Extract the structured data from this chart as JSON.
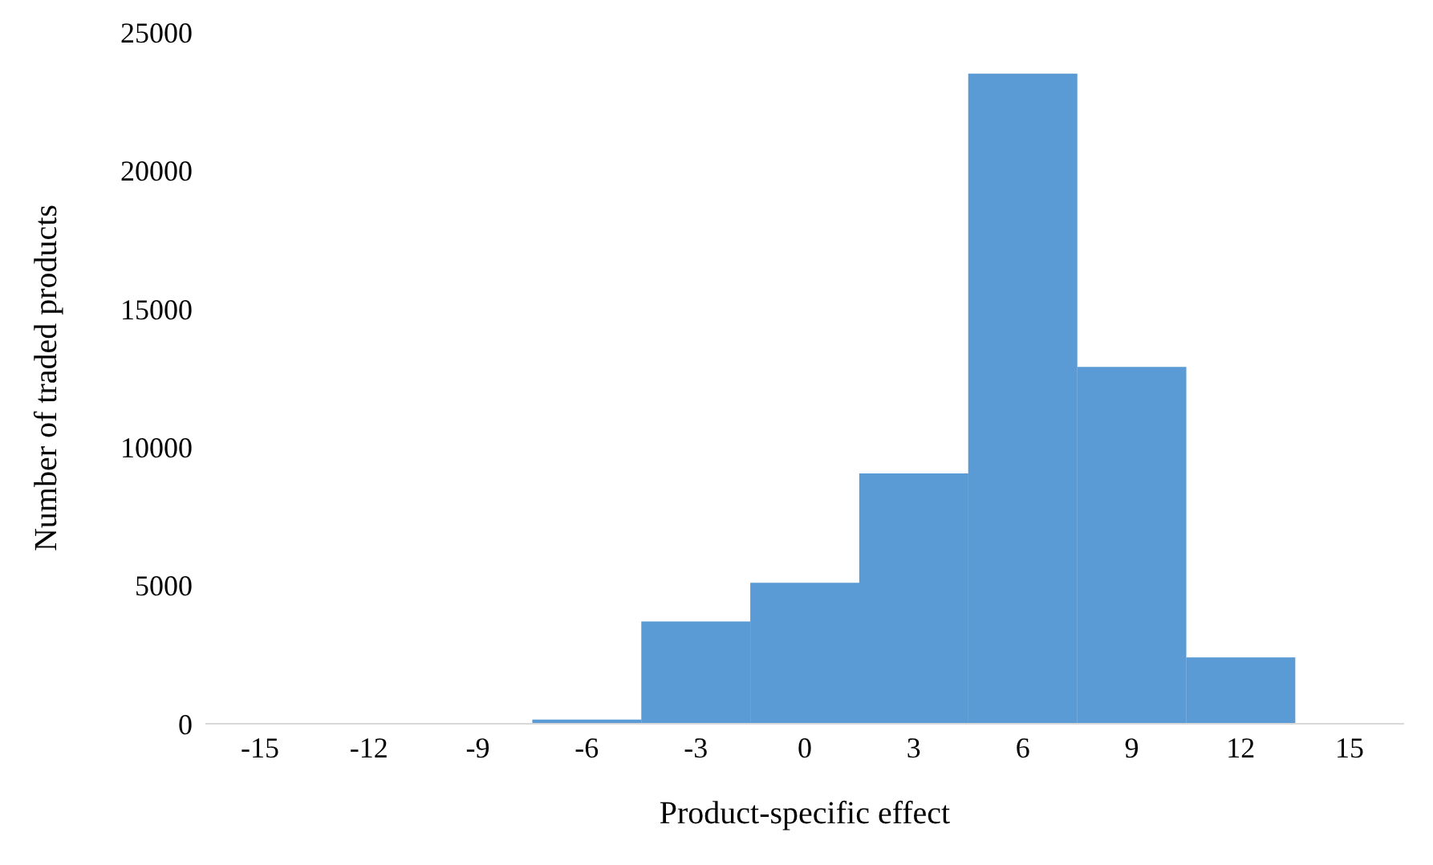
{
  "chart_data": {
    "type": "bar",
    "xlabel": "Product-specific effect",
    "ylabel": "Number of traded products",
    "categories": [
      "-15",
      "-12",
      "-9",
      "-6",
      "-3",
      "0",
      "3",
      "6",
      "9",
      "12",
      "15"
    ],
    "values": [
      0,
      0,
      0,
      150,
      3700,
      5100,
      9050,
      23500,
      12900,
      2400,
      0
    ],
    "color": "#5b9bd5",
    "ylim": [
      0,
      25000
    ],
    "yticks": [
      0,
      5000,
      10000,
      15000,
      20000,
      25000
    ],
    "grid": false
  }
}
